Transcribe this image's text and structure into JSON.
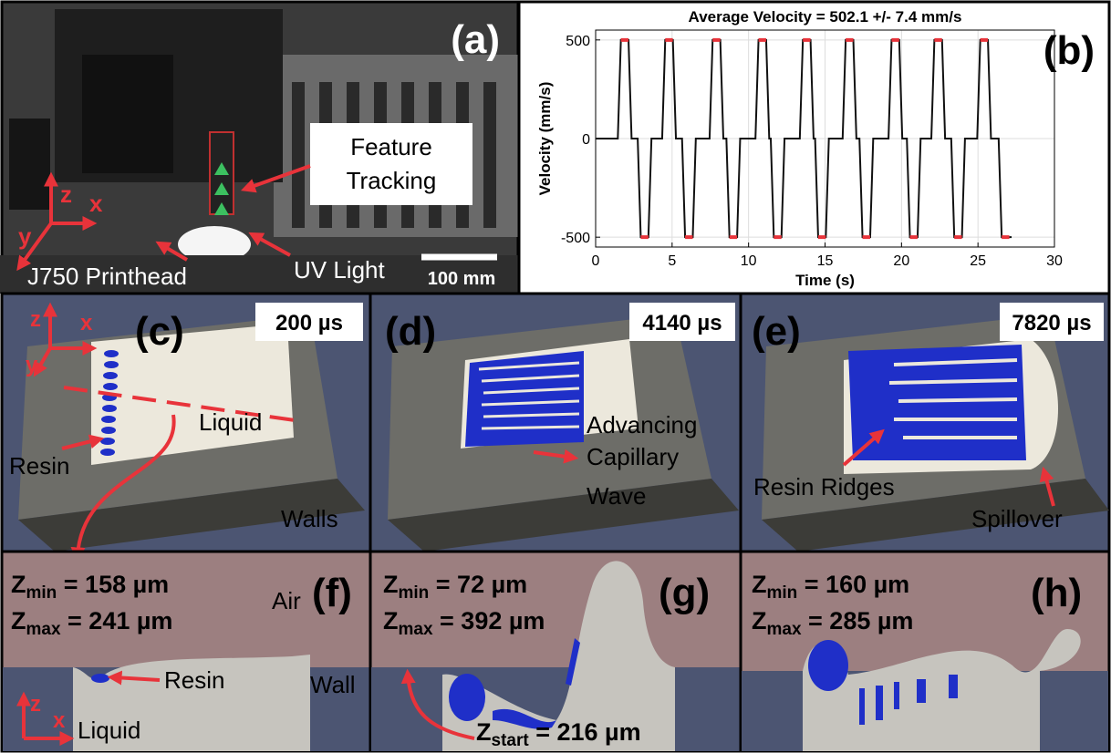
{
  "chart_data": {
    "type": "line",
    "label": "(b)",
    "title": "Average Velocity = 502.1 +/- 7.4 mm/s",
    "x_label": "Time (s)",
    "y_label": "Velocity (mm/s)",
    "xlim": [
      0,
      30
    ],
    "xticks": [
      0,
      5,
      10,
      15,
      20,
      25,
      30
    ],
    "ylim": [
      -550,
      550
    ],
    "yticks": [
      -500,
      0,
      500
    ],
    "grid": true,
    "series": [
      {
        "color": "#111111",
        "x": [
          0,
          1.45,
          1.65,
          2.15,
          2.35,
          2.75,
          2.95,
          3.45,
          3.65,
          4.35,
          4.55,
          5.05,
          5.25,
          5.65,
          5.85,
          6.35,
          6.55,
          7.45,
          7.65,
          8.15,
          8.35,
          8.55,
          8.75,
          9.25,
          9.45,
          10.45,
          10.65,
          11.15,
          11.35,
          11.45,
          11.65,
          12.15,
          12.35,
          13.35,
          13.55,
          14.05,
          14.25,
          14.35,
          14.55,
          15.05,
          15.25,
          16.15,
          16.35,
          16.85,
          17.05,
          17.25,
          17.45,
          17.95,
          18.15,
          19.15,
          19.35,
          19.85,
          20.05,
          20.35,
          20.55,
          21.05,
          21.25,
          21.95,
          22.15,
          22.65,
          22.85,
          23.25,
          23.45,
          23.95,
          24.15,
          24.95,
          25.15,
          25.65,
          25.85,
          26.35,
          26.55,
          27.2
        ],
        "values": [
          0,
          0,
          500,
          500,
          0,
          0,
          -500,
          -500,
          0,
          0,
          500,
          500,
          0,
          0,
          -500,
          -500,
          0,
          0,
          500,
          500,
          0,
          0,
          -500,
          -500,
          0,
          0,
          500,
          500,
          0,
          0,
          -500,
          -500,
          0,
          0,
          500,
          500,
          0,
          0,
          -500,
          -500,
          0,
          0,
          500,
          500,
          0,
          0,
          -500,
          -500,
          0,
          0,
          500,
          500,
          0,
          0,
          -500,
          -500,
          0,
          0,
          500,
          500,
          0,
          0,
          -500,
          -500,
          0,
          0,
          500,
          500,
          0,
          0,
          -500,
          -500
        ]
      },
      {
        "color": "#e8333a",
        "x": [
          1.65,
          2.15,
          null,
          2.95,
          3.45,
          null,
          4.55,
          5.05,
          null,
          5.85,
          6.35,
          null,
          7.65,
          8.15,
          null,
          8.75,
          9.25,
          null,
          10.65,
          11.15,
          null,
          11.65,
          12.15,
          null,
          13.55,
          14.05,
          null,
          14.55,
          15.05,
          null,
          16.35,
          16.85,
          null,
          17.45,
          17.95,
          null,
          19.35,
          19.85,
          null,
          20.55,
          21.05,
          null,
          22.15,
          22.65,
          null,
          23.45,
          23.95,
          null,
          25.15,
          25.65,
          null,
          26.55,
          27.05
        ],
        "values": [
          500,
          500,
          null,
          -500,
          -500,
          null,
          500,
          500,
          null,
          -500,
          -500,
          null,
          500,
          500,
          null,
          -500,
          -500,
          null,
          500,
          500,
          null,
          -500,
          -500,
          null,
          500,
          500,
          null,
          -500,
          -500,
          null,
          500,
          500,
          null,
          -500,
          -500,
          null,
          500,
          500,
          null,
          -500,
          -500,
          null,
          500,
          500,
          null,
          -500,
          -500,
          null,
          500,
          500,
          null,
          -500,
          -500
        ]
      }
    ]
  },
  "panel_a": {
    "label": "(a)",
    "feature_1": "Feature",
    "feature_2": "Tracking",
    "printhead": "J750 Printhead",
    "uv": "UV Light",
    "scale": "100 mm",
    "ax_z": "z",
    "ax_x": "x",
    "ax_y": "y"
  },
  "panel_c": {
    "label": "(c)",
    "time": "200 µs",
    "liquid": "Liquid",
    "resin": "Resin",
    "walls": "Walls",
    "ax_z": "z",
    "ax_x": "x",
    "ax_y": "y"
  },
  "panel_d": {
    "label": "(d)",
    "time": "4140 µs",
    "line_1": "Advancing",
    "line_2": "Capillary",
    "line_3": "Wave"
  },
  "panel_e": {
    "label": "(e)",
    "time": "7820 µs",
    "ridges": "Resin Ridges",
    "spill": "Spillover"
  },
  "panel_f": {
    "label": "(f)",
    "zmin": {
      "sym": "Z",
      "sub": "min",
      "text": " = 158 µm"
    },
    "zmax": {
      "sym": "Z",
      "sub": "max",
      "text": " = 241 µm"
    },
    "air": "Air",
    "resin": "Resin",
    "wall": "Wall",
    "liquid": "Liquid",
    "ax_z": "z",
    "ax_x": "x"
  },
  "panel_g": {
    "label": "(g)",
    "zmin": {
      "sym": "Z",
      "sub": "min",
      "text": " = 72 µm"
    },
    "zmax": {
      "sym": "Z",
      "sub": "max",
      "text": " = 392 µm"
    },
    "zstart": {
      "sym": "Z",
      "sub": "start",
      "text": " = 216 µm"
    }
  },
  "panel_h": {
    "label": "(h)",
    "zmin": {
      "sym": "Z",
      "sub": "min",
      "text": " = 160 µm"
    },
    "zmax": {
      "sym": "Z",
      "sub": "max",
      "text": " = 285 µm"
    }
  }
}
